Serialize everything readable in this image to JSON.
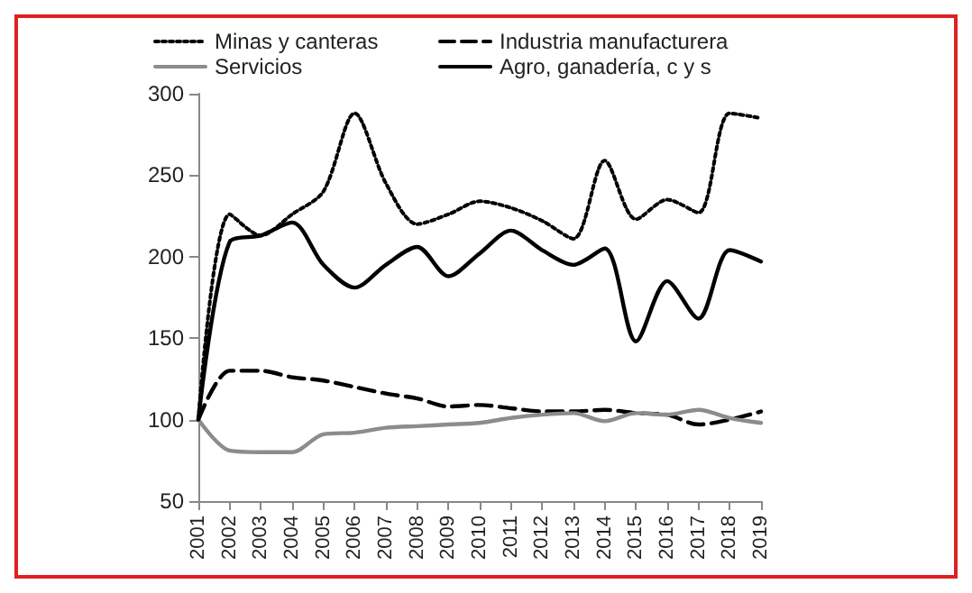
{
  "chart_data": {
    "type": "line",
    "categories": [
      "2001",
      "2002",
      "2003",
      "2004",
      "2005",
      "2006",
      "2007",
      "2008",
      "2009",
      "2010",
      "2011",
      "2012",
      "2013",
      "2014",
      "2015",
      "2016",
      "2017",
      "2018",
      "2019"
    ],
    "series": [
      {
        "name": "Minas y canteras",
        "color": "#000000",
        "line_style": "dotted",
        "values": [
          100,
          226,
          213,
          226,
          240,
          288,
          245,
          220,
          226,
          234,
          230,
          222,
          211,
          259,
          223,
          235,
          227,
          288,
          285
        ]
      },
      {
        "name": "Industria manufacturera",
        "color": "#000000",
        "line_style": "dashed",
        "values": [
          100,
          130,
          130,
          126,
          124,
          120,
          116,
          113,
          108,
          109,
          107,
          105,
          105,
          106,
          104,
          103,
          97,
          100,
          105
        ]
      },
      {
        "name": "Servicios",
        "color": "#8c8c8c",
        "line_style": "solid",
        "values": [
          100,
          81,
          80,
          80,
          91,
          92,
          95,
          96,
          97,
          98,
          101,
          103,
          104,
          99,
          104,
          103,
          106,
          101,
          98
        ]
      },
      {
        "name": "Agro, ganadería, c y s",
        "color": "#000000",
        "line_style": "solid",
        "values": [
          100,
          209,
          213,
          221,
          195,
          181,
          195,
          206,
          188,
          202,
          216,
          204,
          195,
          205,
          148,
          185,
          162,
          204,
          197
        ]
      }
    ],
    "ylim": [
      50,
      300
    ],
    "yticks": [
      50,
      100,
      150,
      200,
      250,
      300
    ],
    "grid": false,
    "legend": "top",
    "marker": "none"
  }
}
